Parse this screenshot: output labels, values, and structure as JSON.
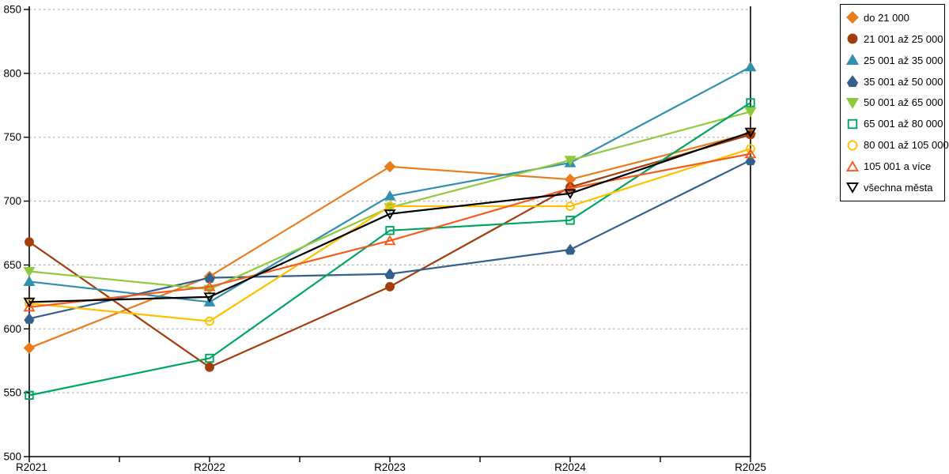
{
  "chart": {
    "y_ticks": [
      "500",
      "550",
      "600",
      "650",
      "700",
      "750",
      "800",
      "850"
    ],
    "x_ticks": [
      "R2021",
      "R2022",
      "R2023",
      "R2024",
      "R2025"
    ]
  },
  "chart_data": {
    "type": "line",
    "title": "",
    "xlabel": "",
    "ylabel": "",
    "categories": [
      "R2021",
      "R2022",
      "R2023",
      "R2024",
      "R2025"
    ],
    "ylim": [
      500,
      850
    ],
    "y_tick_step": 50,
    "grid": "horizontal-dotted",
    "legend_position": "outside-right-top",
    "series": [
      {
        "name": "do 21 000",
        "color": "#e87d1e",
        "marker": "diamond",
        "filled": true,
        "values": [
          585,
          641,
          727,
          717,
          753
        ]
      },
      {
        "name": "21 001 až 25 000",
        "color": "#a33d0b",
        "marker": "circle",
        "filled": true,
        "values": [
          668,
          570,
          633,
          711,
          752
        ]
      },
      {
        "name": "25 001 až 35 000",
        "color": "#3090ad",
        "marker": "triangle-up",
        "filled": true,
        "values": [
          637,
          621,
          704,
          730,
          805
        ]
      },
      {
        "name": "35 001 až 50 000",
        "color": "#33608d",
        "marker": "pentagon",
        "filled": true,
        "values": [
          608,
          640,
          643,
          662,
          732
        ]
      },
      {
        "name": "50 001 až 65 000",
        "color": "#8fc93c",
        "marker": "triangle-down",
        "filled": true,
        "values": [
          645,
          631,
          695,
          732,
          770
        ]
      },
      {
        "name": "65 001 až 80 000",
        "color": "#00a660",
        "marker": "square",
        "filled": false,
        "values": [
          548,
          577,
          677,
          685,
          777
        ]
      },
      {
        "name": "80 001 až 105 000",
        "color": "#ffc000",
        "marker": "circle",
        "filled": false,
        "values": [
          620,
          606,
          696,
          696,
          741
        ]
      },
      {
        "name": "105 001 a více",
        "color": "#f45b1c",
        "marker": "triangle-up",
        "filled": false,
        "values": [
          617,
          633,
          669,
          710,
          737
        ]
      },
      {
        "name": "všechna města",
        "color": "#000000",
        "marker": "triangle-down",
        "filled": false,
        "values": [
          621,
          625,
          690,
          706,
          754
        ]
      }
    ]
  }
}
